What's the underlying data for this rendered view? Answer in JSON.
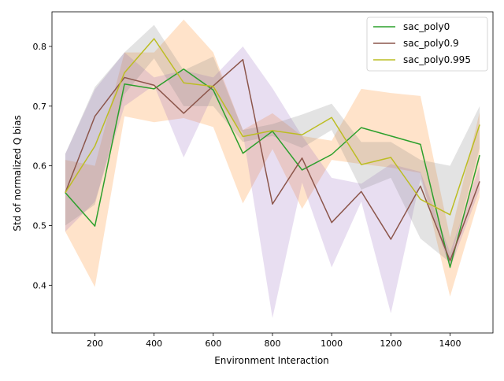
{
  "chart_data": {
    "type": "line",
    "title": "",
    "xlabel": "Environment Interaction",
    "ylabel": "Std of normalized Q bias",
    "xlim": [
      55,
      1545
    ],
    "ylim": [
      0.32,
      0.858
    ],
    "xticks": [
      200,
      400,
      600,
      800,
      1000,
      1200,
      1400
    ],
    "yticks": [
      0.4,
      0.5,
      0.6,
      0.7,
      0.8
    ],
    "grid": false,
    "legend_position": "upper right",
    "x": [
      100,
      200,
      300,
      400,
      500,
      600,
      700,
      800,
      900,
      1000,
      1100,
      1200,
      1300,
      1400,
      1500
    ],
    "series": [
      {
        "name": "sac_poly0",
        "color": "#2ca02c",
        "values": [
          0.555,
          0.499,
          0.737,
          0.729,
          0.762,
          0.727,
          0.621,
          0.658,
          0.593,
          0.619,
          0.664,
          0.65,
          0.636,
          0.43,
          0.618
        ]
      },
      {
        "name": "sac_poly0.9",
        "color": "#8c564b",
        "values": [
          0.555,
          0.683,
          0.748,
          0.735,
          0.688,
          0.734,
          0.778,
          0.536,
          0.613,
          0.505,
          0.557,
          0.477,
          0.566,
          0.441,
          0.574
        ]
      },
      {
        "name": "sac_poly0.995",
        "color": "#bcbd22",
        "values": [
          0.555,
          0.633,
          0.756,
          0.813,
          0.739,
          0.733,
          0.649,
          0.659,
          0.652,
          0.681,
          0.602,
          0.614,
          0.544,
          0.518,
          0.669
        ]
      }
    ],
    "bands": [
      {
        "color": "#ff7f0e",
        "opacity": 0.22,
        "lower": [
          0.49,
          0.397,
          0.683,
          0.673,
          0.68,
          0.665,
          0.537,
          0.628,
          0.528,
          0.61,
          0.603,
          0.597,
          0.588,
          0.381,
          0.548
        ],
        "upper": [
          0.61,
          0.6,
          0.79,
          0.79,
          0.845,
          0.79,
          0.66,
          0.688,
          0.65,
          0.642,
          0.729,
          0.722,
          0.717,
          0.48,
          0.69
        ]
      },
      {
        "color": "#9467bd",
        "opacity": 0.22,
        "lower": [
          0.49,
          0.54,
          0.7,
          0.735,
          0.614,
          0.72,
          0.655,
          0.345,
          0.572,
          0.43,
          0.54,
          0.353,
          0.578,
          0.428,
          0.56
        ],
        "upper": [
          0.62,
          0.728,
          0.79,
          0.748,
          0.76,
          0.748,
          0.8,
          0.73,
          0.65,
          0.58,
          0.57,
          0.603,
          0.59,
          0.455,
          0.6
        ]
      },
      {
        "color": "#7f7f7f",
        "opacity": 0.22,
        "lower": [
          0.5,
          0.535,
          0.72,
          0.78,
          0.7,
          0.7,
          0.64,
          0.65,
          0.63,
          0.66,
          0.56,
          0.58,
          0.478,
          0.438,
          0.63
        ],
        "upper": [
          0.62,
          0.732,
          0.79,
          0.836,
          0.76,
          0.783,
          0.66,
          0.67,
          0.686,
          0.704,
          0.64,
          0.64,
          0.61,
          0.6,
          0.7
        ]
      }
    ]
  }
}
